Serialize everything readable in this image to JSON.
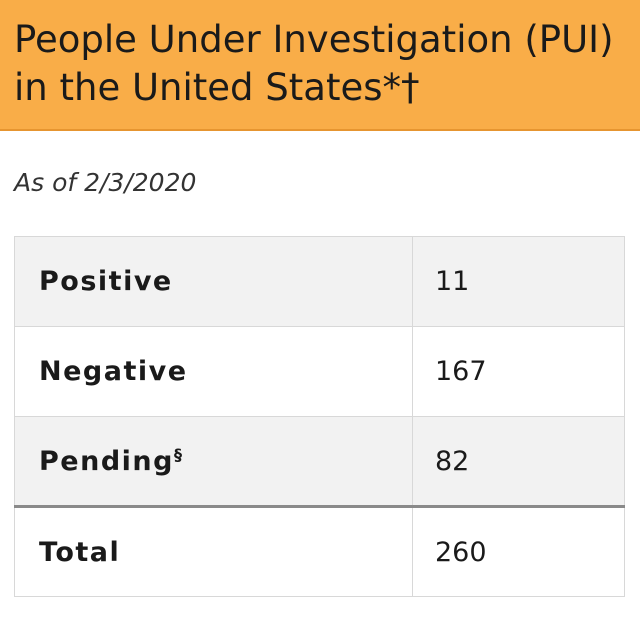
{
  "header": {
    "title_line1": "People Under Investigation (PUI)",
    "title_line2": "in the United States*†",
    "background": "#f9ad48"
  },
  "subtitle": "As of 2/3/2020",
  "table": {
    "rows": [
      {
        "label": "Positive",
        "value": "11"
      },
      {
        "label": "Negative",
        "value": "167"
      },
      {
        "label": "Pending",
        "label_sup": "§",
        "value": "82"
      },
      {
        "label": "Total",
        "value": "260"
      }
    ]
  }
}
